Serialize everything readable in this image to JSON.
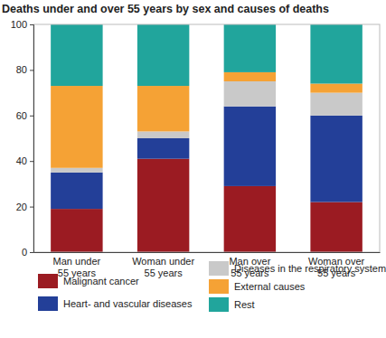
{
  "chart_data": {
    "type": "bar",
    "stacked": true,
    "title": "Deaths under and over 55 years by sex and causes of deaths",
    "categories": [
      "Man under 55 years",
      "Woman under 55 years",
      "Man over 55 years",
      "Woman over 55 years"
    ],
    "series": [
      {
        "name": "Malignant cancer",
        "color": "#9b1b22",
        "values": [
          19,
          41,
          29,
          22
        ]
      },
      {
        "name": "Heart- and vascular diseases",
        "color": "#233f98",
        "values": [
          16,
          9,
          35,
          38
        ]
      },
      {
        "name": "Diseases in the respiratory system",
        "color": "#c9c9c9",
        "values": [
          2,
          3,
          11,
          10
        ]
      },
      {
        "name": "External causes",
        "color": "#f5a235",
        "values": [
          36,
          20,
          4,
          4
        ]
      },
      {
        "name": "Rest",
        "color": "#21a59c",
        "values": [
          27,
          27,
          21,
          26
        ]
      }
    ],
    "ylim": [
      0,
      100
    ],
    "yticks": [
      0,
      20,
      40,
      60,
      80,
      100
    ],
    "grid": false,
    "legend": "bottom"
  }
}
